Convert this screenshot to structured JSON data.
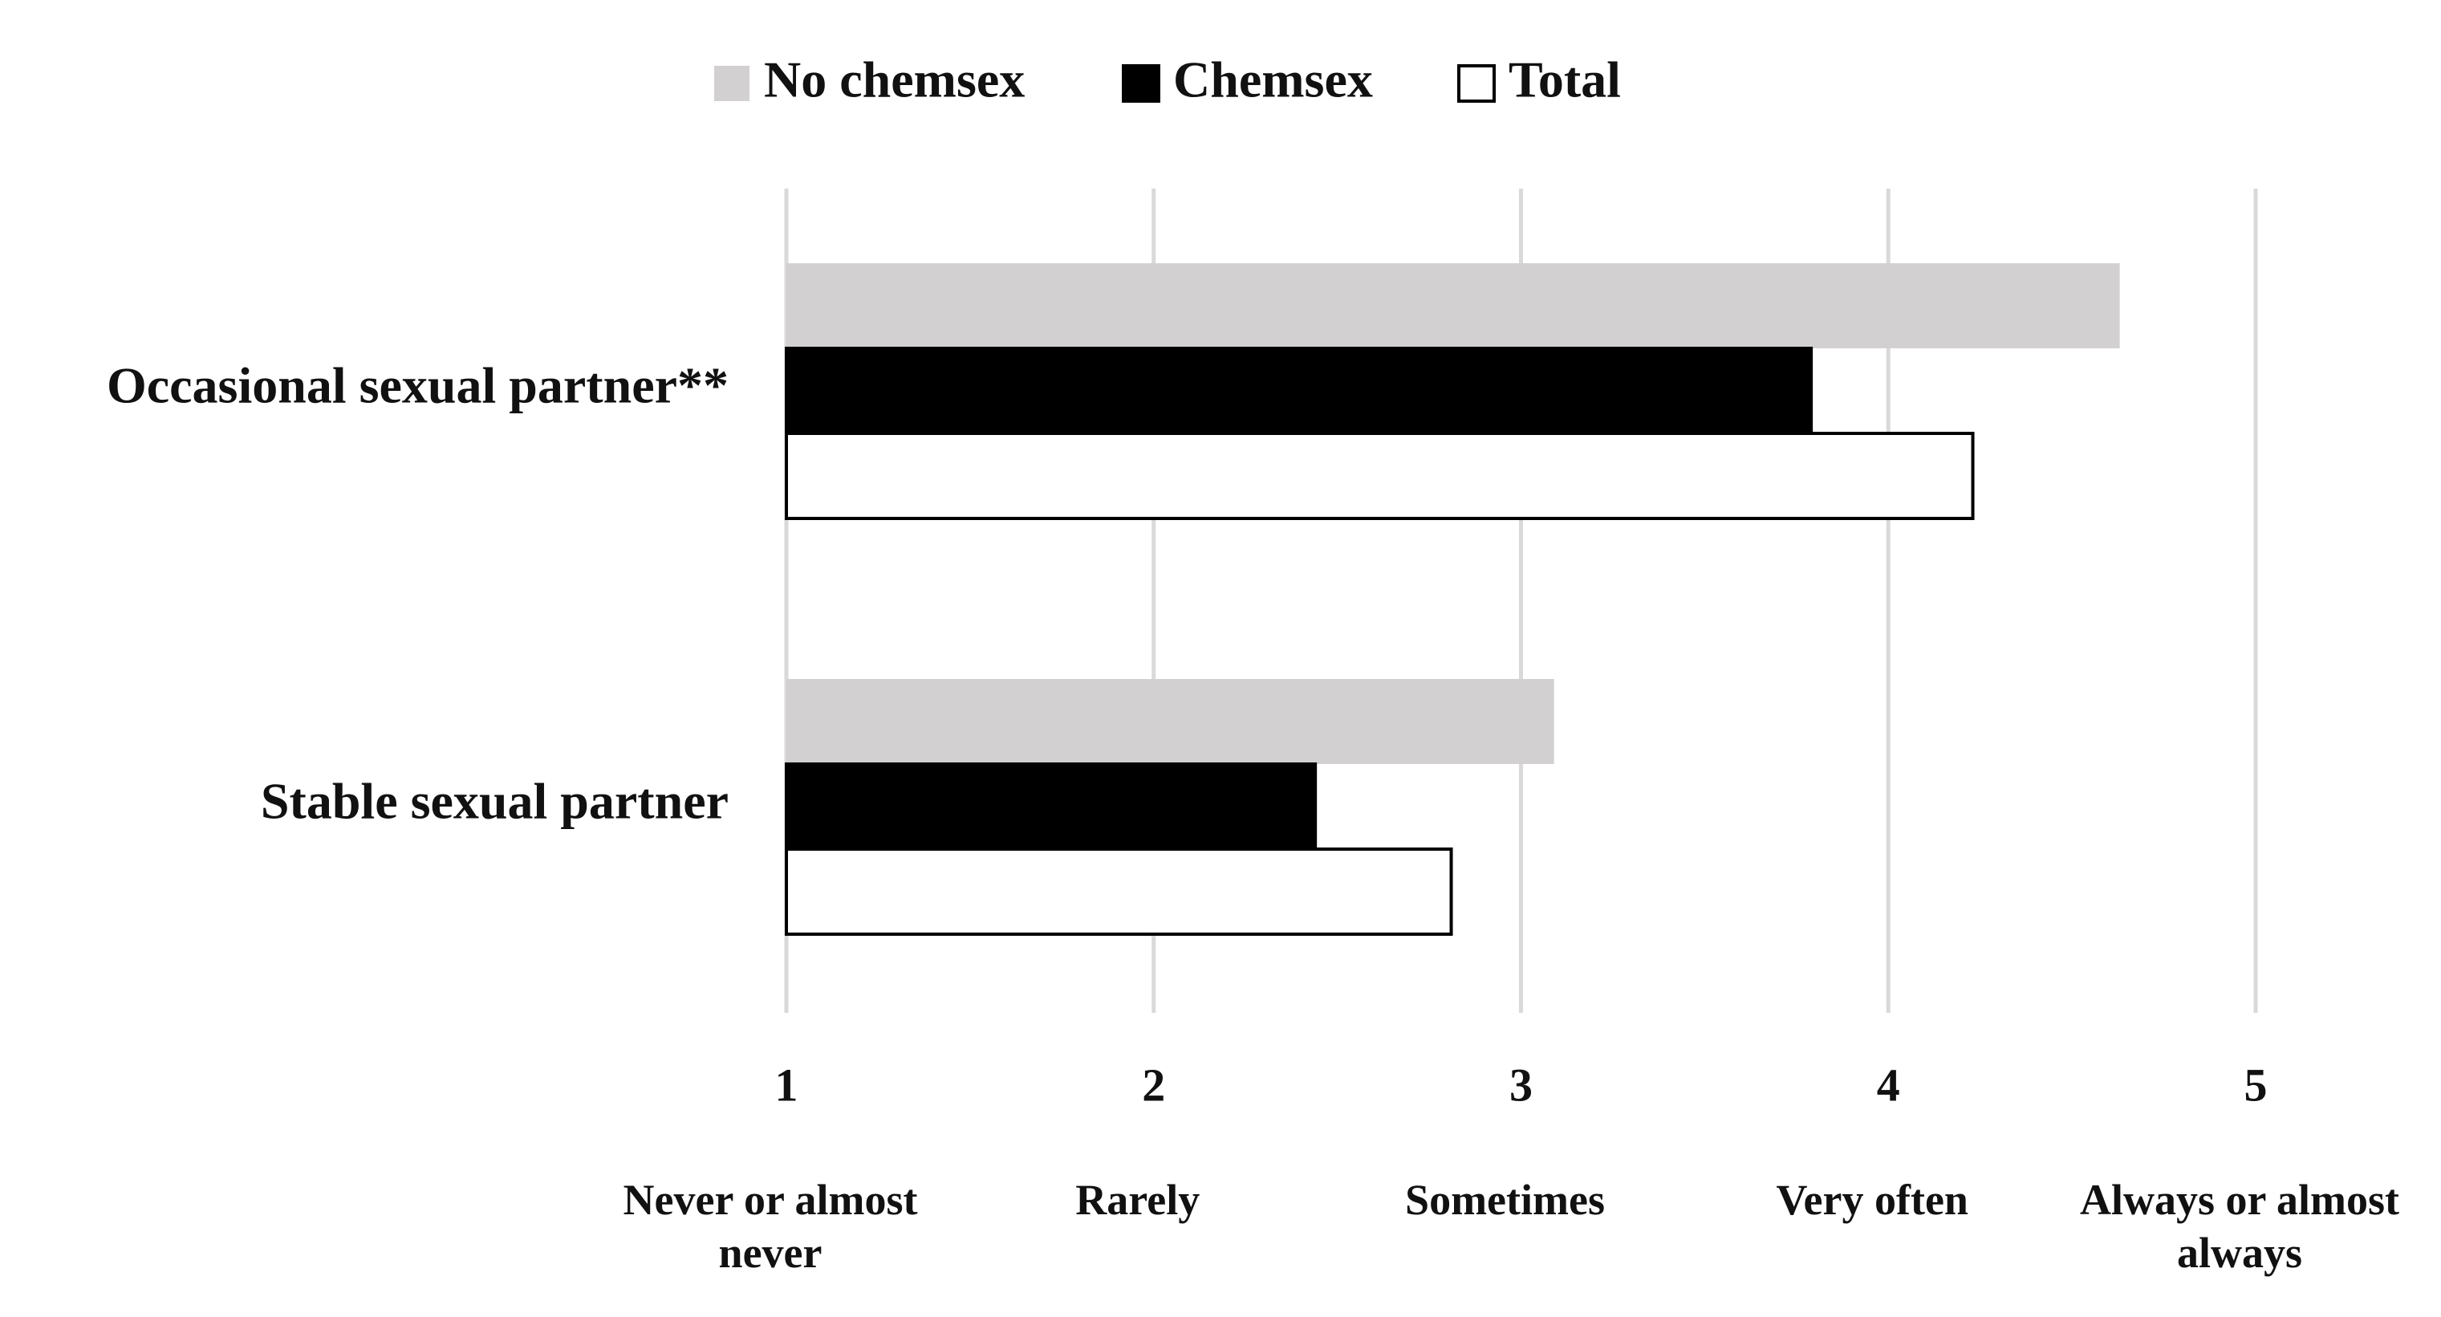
{
  "chart_data": {
    "type": "bar",
    "orientation": "horizontal",
    "categories": [
      "Occasional sexual partner**",
      "Stable sexual partner"
    ],
    "series": [
      {
        "name": "No chemsex",
        "color": "#d3d0d1",
        "values": [
          4.63,
          3.09
        ]
      },
      {
        "name": "Chemsex",
        "color": "#000000",
        "values": [
          3.79,
          2.44
        ]
      },
      {
        "name": "Total",
        "color": "#ffffff",
        "values": [
          4.23,
          2.81
        ]
      }
    ],
    "xlim": [
      1,
      5
    ],
    "xticks": [
      1,
      2,
      3,
      4,
      5
    ],
    "xtick_descriptions": [
      "Never or almost never",
      "Rarely",
      "Sometimes",
      "Very often",
      "Always or almost always"
    ],
    "grid": true,
    "legend": "top"
  }
}
